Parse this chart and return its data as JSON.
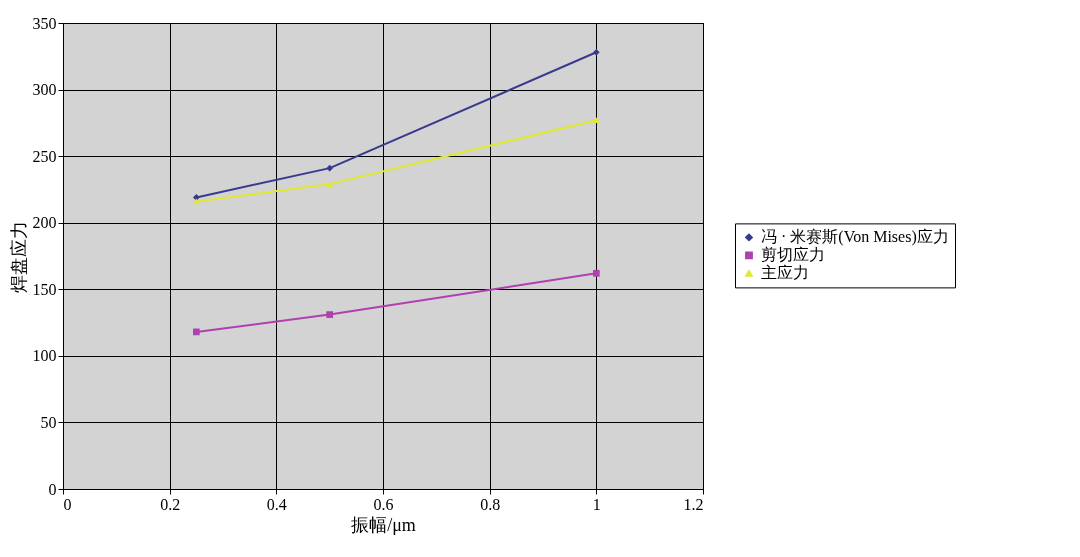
{
  "chart_data": {
    "type": "line",
    "xlabel": "振幅/μm",
    "ylabel": "焊盘应力",
    "xlim": [
      0,
      1.2
    ],
    "xticks": [
      0,
      0.2,
      0.4,
      0.6,
      0.8,
      1,
      1.2
    ],
    "ylim": [
      0,
      350
    ],
    "yticks": [
      0,
      50,
      100,
      150,
      200,
      250,
      300,
      350
    ],
    "grid": true,
    "legend": "right",
    "line_style": "solid",
    "series": [
      {
        "name": "冯 · 米赛斯(Von Mises)应力",
        "color": "#3a3a8c",
        "marker": "diamond",
        "x": [
          0.25,
          0.5,
          1
        ],
        "values": [
          219,
          241,
          328
        ]
      },
      {
        "name": "剪切应力",
        "color": "#b040b0",
        "marker": "square",
        "x": [
          0.25,
          0.5,
          1
        ],
        "values": [
          118,
          131,
          162
        ]
      },
      {
        "name": "主应力",
        "color": "#e0e830",
        "marker": "triangle",
        "x": [
          0.25,
          0.5,
          1
        ],
        "values": [
          216,
          229,
          277
        ]
      }
    ]
  }
}
